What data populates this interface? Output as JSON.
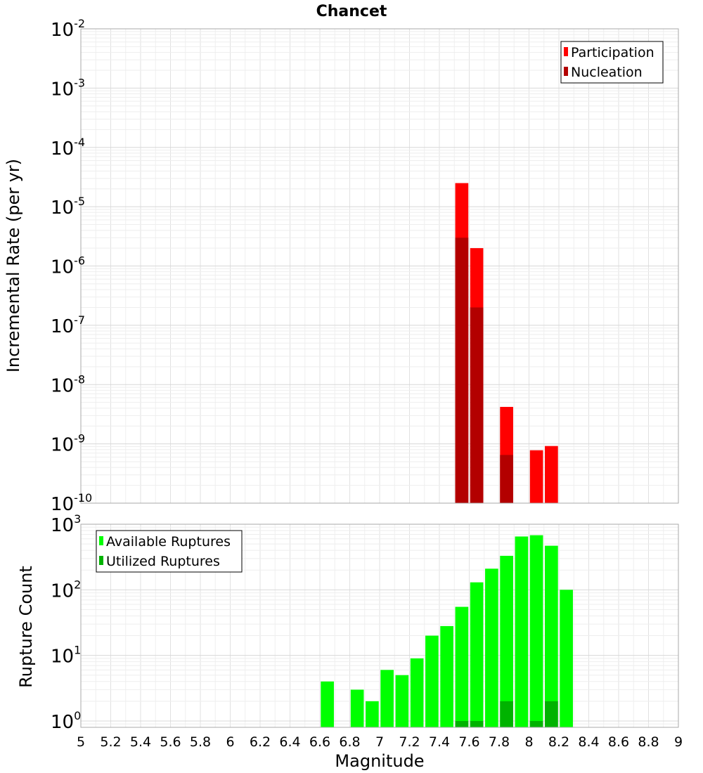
{
  "chart_data": [
    {
      "type": "bar",
      "title": "Chancet",
      "xlabel": "",
      "ylabel": "Incremental Rate (per yr)",
      "yscale": "log",
      "xlim": [
        5,
        9
      ],
      "ylim": [
        1e-10,
        0.01
      ],
      "y_tick_exponents": [
        "-2",
        "-3",
        "-4",
        "-5",
        "-6",
        "-7",
        "-8",
        "-9",
        "-10"
      ],
      "y_tick_base": "10",
      "grid": true,
      "legend_position": "top-right",
      "bin_width": 0.1,
      "series": [
        {
          "name": "Participation",
          "color": "#ff0000",
          "x": [
            7.55,
            7.65,
            7.85,
            8.05,
            8.15
          ],
          "values": [
            2.5e-05,
            2e-06,
            4.2e-09,
            7.8e-10,
            9.2e-10
          ]
        },
        {
          "name": "Nucleation",
          "color": "#b30000",
          "x": [
            7.55,
            7.65,
            7.85
          ],
          "values": [
            3e-06,
            2e-07,
            6.5e-10
          ]
        }
      ]
    },
    {
      "type": "bar",
      "title": "",
      "xlabel": "Magnitude",
      "ylabel": "Rupture Count",
      "yscale": "log",
      "xlim": [
        5,
        9
      ],
      "ylim": [
        0.8,
        1000
      ],
      "y_tick_exponents": [
        "3",
        "2",
        "1",
        "0"
      ],
      "y_tick_base": "10",
      "x_ticks": [
        "5",
        "5.2",
        "5.4",
        "5.6",
        "5.8",
        "6",
        "6.2",
        "6.4",
        "6.6",
        "6.8",
        "7",
        "7.2",
        "7.4",
        "7.6",
        "7.8",
        "8",
        "8.2",
        "8.4",
        "8.6",
        "8.8",
        "9"
      ],
      "grid": true,
      "legend_position": "top-left",
      "bin_width": 0.1,
      "series": [
        {
          "name": "Available Ruptures",
          "color": "#00ff00",
          "x": [
            6.65,
            6.85,
            6.95,
            7.05,
            7.15,
            7.25,
            7.35,
            7.45,
            7.55,
            7.65,
            7.75,
            7.85,
            7.95,
            8.05,
            8.15,
            8.25
          ],
          "values": [
            4,
            3,
            2,
            6,
            5,
            9,
            20,
            28,
            55,
            130,
            210,
            330,
            650,
            680,
            470,
            100
          ]
        },
        {
          "name": "Utilized Ruptures",
          "color": "#00b300",
          "x": [
            7.55,
            7.65,
            7.85,
            8.05,
            8.15
          ],
          "values": [
            1,
            1,
            2,
            1,
            2
          ]
        }
      ]
    }
  ]
}
